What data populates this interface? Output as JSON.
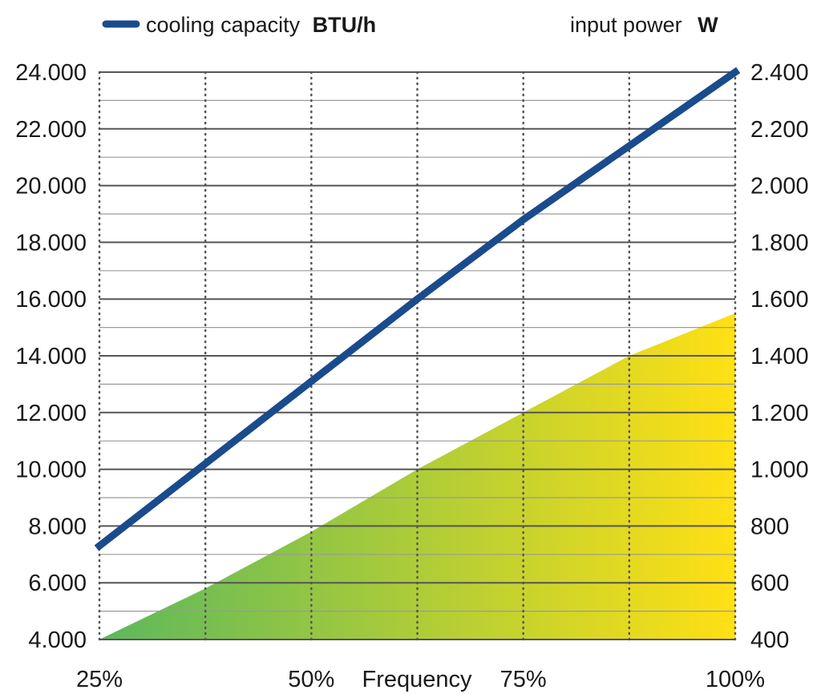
{
  "colors": {
    "capacity_line": "#1a4b8c",
    "power_start": "#5cb85c",
    "power_end": "#ffe014",
    "grid": "#555555"
  },
  "legend": {
    "capacity_label": "cooling capacity",
    "capacity_unit": "BTU/h",
    "power_label": "input power",
    "power_unit": "W"
  },
  "chart_data": {
    "type": "line",
    "x_axis": {
      "label": "Frequency",
      "range": [
        25,
        100
      ],
      "tick_labels": [
        "25%",
        "50%",
        "75%",
        "100%"
      ],
      "tick_values": [
        25,
        50,
        75,
        100
      ],
      "minor_gridlines": [
        37.5,
        62.5,
        87.5
      ]
    },
    "y_left": {
      "range": [
        4000,
        24000
      ],
      "tick_values": [
        4000,
        6000,
        8000,
        10000,
        12000,
        14000,
        16000,
        18000,
        20000,
        22000,
        24000
      ],
      "tick_labels": [
        "4.000",
        "6.000",
        "8.000",
        "10.000",
        "12.000",
        "14.000",
        "16.000",
        "18.000",
        "20.000",
        "22.000",
        "24.000"
      ],
      "minor_gridlines": [
        5000,
        7000,
        9000,
        11000,
        13000,
        15000,
        17000,
        19000,
        21000,
        23000
      ]
    },
    "y_right": {
      "range": [
        400,
        2400
      ],
      "tick_values": [
        400,
        600,
        800,
        1000,
        1200,
        1400,
        1600,
        1800,
        2000,
        2200,
        2400
      ],
      "tick_labels": [
        "400",
        "600",
        "800",
        "1.000",
        "1.200",
        "1.400",
        "1.600",
        "1.800",
        "2.000",
        "2.200",
        "2.400"
      ]
    },
    "series": [
      {
        "name": "cooling capacity BTU/h",
        "type": "line",
        "axis": "left",
        "x": [
          25,
          37.5,
          50,
          62.5,
          75,
          87.5,
          100
        ],
        "y": [
          7300,
          10200,
          13100,
          16000,
          18800,
          21400,
          24000
        ]
      },
      {
        "name": "input power W",
        "type": "area",
        "axis": "right",
        "x": [
          25,
          37.5,
          50,
          62.5,
          75,
          87.5,
          100
        ],
        "y": [
          400,
          580,
          780,
          1000,
          1200,
          1400,
          1550
        ]
      }
    ],
    "grid": true,
    "legend_position": "top"
  }
}
